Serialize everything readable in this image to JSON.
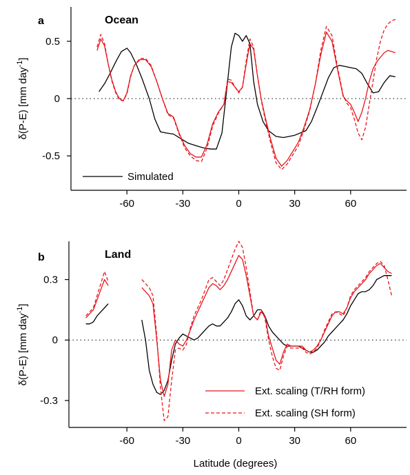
{
  "chart_data": [
    {
      "panel_letter": "a",
      "title": "Ocean",
      "type": "line",
      "xlabel": "",
      "ylabel": "δ(P-E) [mm day⁻¹]",
      "xlim": [
        -90,
        90
      ],
      "ylim": [
        -0.8,
        0.8
      ],
      "xticks": [
        -60,
        -30,
        0,
        30,
        60
      ],
      "yticks": [
        -0.5,
        0,
        0.5
      ],
      "ytick_labels": [
        "-0.5",
        "0",
        "0.5"
      ],
      "zero_line": "dotted",
      "legend": {
        "position": "bottom-left",
        "entries": [
          "Simulated"
        ]
      },
      "series": [
        {
          "name": "Simulated",
          "color": "#000000",
          "style": "solid",
          "x": [
            -75,
            -72,
            -69,
            -66,
            -63,
            -60,
            -58,
            -55,
            -52,
            -48,
            -45,
            -42,
            -39,
            -35,
            -31,
            -27,
            -23,
            -19,
            -15,
            -12,
            -9,
            -6,
            -4,
            -2,
            0,
            2,
            4,
            6,
            8,
            10,
            13,
            16,
            20,
            24,
            27,
            30,
            33,
            36,
            39,
            42,
            45,
            48,
            51,
            54,
            57,
            60,
            63,
            66,
            69,
            72,
            75,
            78,
            81,
            84
          ],
          "y": [
            0.06,
            0.13,
            0.22,
            0.32,
            0.41,
            0.44,
            0.4,
            0.3,
            0.18,
            0.0,
            -0.18,
            -0.29,
            -0.3,
            -0.31,
            -0.35,
            -0.39,
            -0.41,
            -0.43,
            -0.44,
            -0.44,
            -0.3,
            0.15,
            0.45,
            0.57,
            0.55,
            0.5,
            0.55,
            0.48,
            0.15,
            -0.05,
            -0.2,
            -0.28,
            -0.33,
            -0.34,
            -0.33,
            -0.32,
            -0.3,
            -0.28,
            -0.2,
            -0.08,
            0.05,
            0.18,
            0.27,
            0.29,
            0.28,
            0.27,
            0.26,
            0.22,
            0.13,
            0.05,
            0.06,
            0.14,
            0.2,
            0.19
          ]
        },
        {
          "name": "Ext. scaling (T/RH form)",
          "color": "#e8141c",
          "style": "solid",
          "x": [
            -76,
            -74,
            -72,
            -70,
            -68,
            -66,
            -64,
            -62,
            -60,
            -58,
            -56,
            -53,
            -50,
            -47,
            -44,
            -41,
            -38,
            -35,
            -32,
            -29,
            -26,
            -23,
            -20,
            -17,
            -14,
            -11,
            -8,
            -6,
            -4,
            -2,
            0,
            2,
            4,
            6,
            8,
            10,
            12,
            14,
            17,
            20,
            23,
            26,
            29,
            32,
            35,
            38,
            41,
            44,
            47,
            50,
            53,
            56,
            58,
            60,
            62,
            64,
            66,
            68,
            70,
            72,
            74,
            76,
            78,
            80,
            82,
            84
          ],
          "y": [
            0.42,
            0.52,
            0.46,
            0.3,
            0.16,
            0.06,
            0.0,
            -0.02,
            0.05,
            0.2,
            0.29,
            0.34,
            0.34,
            0.28,
            0.15,
            0.0,
            -0.13,
            -0.16,
            -0.3,
            -0.41,
            -0.48,
            -0.51,
            -0.51,
            -0.4,
            -0.22,
            -0.12,
            -0.05,
            0.15,
            0.14,
            0.1,
            0.06,
            0.1,
            0.3,
            0.48,
            0.43,
            0.2,
            0.0,
            -0.15,
            -0.35,
            -0.52,
            -0.59,
            -0.54,
            -0.46,
            -0.38,
            -0.25,
            -0.1,
            0.12,
            0.38,
            0.58,
            0.5,
            0.25,
            0.02,
            -0.02,
            -0.05,
            -0.12,
            -0.2,
            -0.12,
            0.0,
            0.15,
            0.26,
            0.32,
            0.36,
            0.4,
            0.42,
            0.41,
            0.4
          ]
        },
        {
          "name": "Ext. scaling (SH form)",
          "color": "#e8141c",
          "style": "dashed",
          "x": [
            -76,
            -74,
            -72,
            -70,
            -68,
            -66,
            -64,
            -62,
            -60,
            -58,
            -56,
            -53,
            -50,
            -47,
            -44,
            -41,
            -38,
            -35,
            -32,
            -29,
            -26,
            -23,
            -20,
            -17,
            -14,
            -11,
            -8,
            -6,
            -4,
            -2,
            0,
            2,
            4,
            6,
            8,
            10,
            12,
            14,
            17,
            20,
            23,
            26,
            29,
            32,
            35,
            38,
            41,
            44,
            47,
            50,
            53,
            56,
            58,
            60,
            62,
            64,
            66,
            68,
            70,
            72,
            74,
            76,
            78,
            80,
            82,
            84
          ],
          "y": [
            0.45,
            0.56,
            0.48,
            0.3,
            0.15,
            0.05,
            -0.01,
            -0.02,
            0.04,
            0.19,
            0.29,
            0.35,
            0.35,
            0.29,
            0.15,
            0.0,
            -0.14,
            -0.17,
            -0.31,
            -0.43,
            -0.5,
            -0.54,
            -0.55,
            -0.43,
            -0.24,
            -0.13,
            -0.05,
            0.17,
            0.16,
            0.1,
            0.05,
            0.1,
            0.33,
            0.52,
            0.45,
            0.2,
            -0.01,
            -0.17,
            -0.38,
            -0.56,
            -0.62,
            -0.57,
            -0.49,
            -0.41,
            -0.27,
            -0.11,
            0.12,
            0.42,
            0.63,
            0.55,
            0.27,
            0.03,
            -0.04,
            -0.08,
            -0.18,
            -0.3,
            -0.36,
            -0.25,
            -0.05,
            0.15,
            0.35,
            0.5,
            0.6,
            0.65,
            0.68,
            0.69
          ]
        }
      ]
    },
    {
      "panel_letter": "b",
      "title": "Land",
      "type": "line",
      "xlabel": "Latitude (degrees)",
      "ylabel": "δ(P-E) [mm day⁻¹]",
      "xlim": [
        -90,
        90
      ],
      "ylim": [
        -0.42,
        0.49
      ],
      "xticks": [
        -60,
        -30,
        0,
        30,
        60
      ],
      "yticks": [
        -0.3,
        0,
        0.3
      ],
      "ytick_labels": [
        "-0.3",
        "0",
        "0.3"
      ],
      "zero_line": "dotted",
      "legend": {
        "position": "bottom-right",
        "entries": [
          "Ext. scaling (T/RH form)",
          "Ext. scaling (SH form)"
        ]
      },
      "series": [
        {
          "name": "Simulated",
          "color": "#000000",
          "style": "solid",
          "segments": [
            {
              "x": [
                -82,
                -80,
                -78,
                -76,
                -74,
                -72,
                -70
              ],
              "y": [
                0.08,
                0.08,
                0.09,
                0.12,
                0.14,
                0.16,
                0.18
              ]
            },
            {
              "x": [
                -52,
                -50,
                -48,
                -46,
                -44,
                -42,
                -40,
                -38,
                -36,
                -34,
                -32,
                -30,
                -28,
                -26,
                -24,
                -22,
                -20,
                -18,
                -16,
                -14,
                -12,
                -10,
                -8,
                -6,
                -4,
                -2,
                0,
                2,
                4,
                6,
                8,
                10,
                12,
                14,
                16,
                18,
                20,
                22,
                24,
                26,
                28,
                30,
                32,
                34,
                36,
                38,
                40,
                42,
                44,
                46,
                48,
                50,
                52,
                54,
                56,
                58,
                60,
                62,
                64,
                66,
                68,
                70,
                72,
                74,
                76,
                78,
                80,
                82
              ],
              "y": [
                0.1,
                0.0,
                -0.15,
                -0.22,
                -0.26,
                -0.27,
                -0.25,
                -0.2,
                -0.1,
                -0.02,
                0.01,
                0.03,
                0.02,
                0.01,
                0.0,
                0.01,
                0.03,
                0.05,
                0.07,
                0.08,
                0.07,
                0.07,
                0.09,
                0.11,
                0.14,
                0.18,
                0.2,
                0.17,
                0.12,
                0.1,
                0.12,
                0.15,
                0.15,
                0.12,
                0.07,
                0.04,
                0.02,
                0.0,
                -0.02,
                -0.03,
                -0.03,
                -0.03,
                -0.03,
                -0.04,
                -0.05,
                -0.06,
                -0.06,
                -0.05,
                -0.03,
                -0.01,
                0.02,
                0.04,
                0.06,
                0.08,
                0.1,
                0.13,
                0.17,
                0.2,
                0.23,
                0.24,
                0.24,
                0.25,
                0.27,
                0.3,
                0.31,
                0.32,
                0.32,
                0.32
              ]
            }
          ]
        },
        {
          "name": "Ext. scaling (T/RH form)",
          "color": "#e8141c",
          "style": "solid",
          "segments": [
            {
              "x": [
                -82,
                -80,
                -78,
                -76,
                -74,
                -72,
                -70
              ],
              "y": [
                0.11,
                0.13,
                0.15,
                0.2,
                0.25,
                0.3,
                0.27
              ]
            },
            {
              "x": [
                -52,
                -50,
                -48,
                -46,
                -44,
                -42,
                -40,
                -38,
                -36,
                -34,
                -32,
                -30,
                -28,
                -26,
                -24,
                -22,
                -20,
                -18,
                -16,
                -14,
                -12,
                -10,
                -8,
                -6,
                -4,
                -2,
                0,
                2,
                4,
                6,
                8,
                10,
                12,
                14,
                16,
                18,
                20,
                22,
                24,
                26,
                28,
                30,
                32,
                34,
                36,
                38,
                40,
                42,
                44,
                46,
                48,
                50,
                52,
                54,
                56,
                58,
                60,
                62,
                64,
                66,
                68,
                70,
                72,
                74,
                76,
                78,
                80,
                82
              ],
              "y": [
                0.26,
                0.24,
                0.22,
                0.18,
                0.0,
                -0.2,
                -0.28,
                -0.22,
                -0.05,
                0.0,
                -0.02,
                -0.03,
                0.0,
                0.05,
                0.1,
                0.14,
                0.18,
                0.22,
                0.26,
                0.28,
                0.27,
                0.25,
                0.27,
                0.3,
                0.34,
                0.38,
                0.42,
                0.4,
                0.32,
                0.22,
                0.12,
                0.1,
                0.14,
                0.12,
                0.02,
                -0.04,
                -0.1,
                -0.12,
                -0.06,
                -0.02,
                -0.03,
                -0.03,
                -0.03,
                -0.03,
                -0.05,
                -0.06,
                -0.05,
                -0.03,
                0.0,
                0.04,
                0.08,
                0.12,
                0.14,
                0.14,
                0.13,
                0.16,
                0.21,
                0.24,
                0.26,
                0.28,
                0.3,
                0.33,
                0.35,
                0.37,
                0.38,
                0.36,
                0.34,
                0.33
              ]
            }
          ]
        },
        {
          "name": "Ext. scaling (SH form)",
          "color": "#e8141c",
          "style": "dashed",
          "segments": [
            {
              "x": [
                -82,
                -80,
                -78,
                -76,
                -74,
                -72,
                -70
              ],
              "y": [
                0.12,
                0.14,
                0.16,
                0.22,
                0.28,
                0.34,
                0.29
              ]
            },
            {
              "x": [
                -52,
                -50,
                -48,
                -46,
                -44,
                -42,
                -40,
                -38,
                -36,
                -34,
                -32,
                -30,
                -28,
                -26,
                -24,
                -22,
                -20,
                -18,
                -16,
                -14,
                -12,
                -10,
                -8,
                -6,
                -4,
                -2,
                0,
                2,
                4,
                6,
                8,
                10,
                12,
                14,
                16,
                18,
                20,
                22,
                24,
                26,
                28,
                30,
                32,
                34,
                36,
                38,
                40,
                42,
                44,
                46,
                48,
                50,
                52,
                54,
                56,
                58,
                60,
                62,
                64,
                66,
                68,
                70,
                72,
                74,
                76,
                78,
                80,
                82
              ],
              "y": [
                0.3,
                0.28,
                0.26,
                0.22,
                0.02,
                -0.24,
                -0.4,
                -0.38,
                -0.2,
                -0.05,
                -0.04,
                -0.05,
                -0.02,
                0.06,
                0.12,
                0.16,
                0.2,
                0.25,
                0.3,
                0.31,
                0.29,
                0.27,
                0.3,
                0.35,
                0.4,
                0.45,
                0.49,
                0.46,
                0.36,
                0.24,
                0.12,
                0.1,
                0.15,
                0.11,
                0.0,
                -0.08,
                -0.14,
                -0.15,
                -0.08,
                -0.03,
                -0.04,
                -0.04,
                -0.04,
                -0.04,
                -0.06,
                -0.07,
                -0.06,
                -0.04,
                0.0,
                0.05,
                0.09,
                0.13,
                0.14,
                0.13,
                0.12,
                0.16,
                0.22,
                0.25,
                0.27,
                0.29,
                0.31,
                0.34,
                0.36,
                0.38,
                0.39,
                0.37,
                0.3,
                0.22
              ]
            }
          ]
        }
      ]
    }
  ]
}
